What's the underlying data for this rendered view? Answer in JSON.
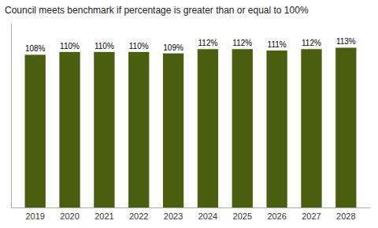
{
  "chart_data": {
    "type": "bar",
    "title": "Council meets benchmark if percentage is greater than or equal to 100%",
    "categories": [
      "2019",
      "2020",
      "2021",
      "2022",
      "2023",
      "2024",
      "2025",
      "2026",
      "2027",
      "2028"
    ],
    "values": [
      108,
      110,
      110,
      110,
      109,
      112,
      112,
      111,
      112,
      113
    ],
    "value_labels": [
      "108%",
      "110%",
      "110%",
      "110%",
      "109%",
      "112%",
      "112%",
      "111%",
      "112%",
      "113%"
    ],
    "data_labels": true,
    "color": "#4a5e10",
    "ylim": [
      0,
      130
    ],
    "grid": false,
    "tick_labels": "x"
  }
}
